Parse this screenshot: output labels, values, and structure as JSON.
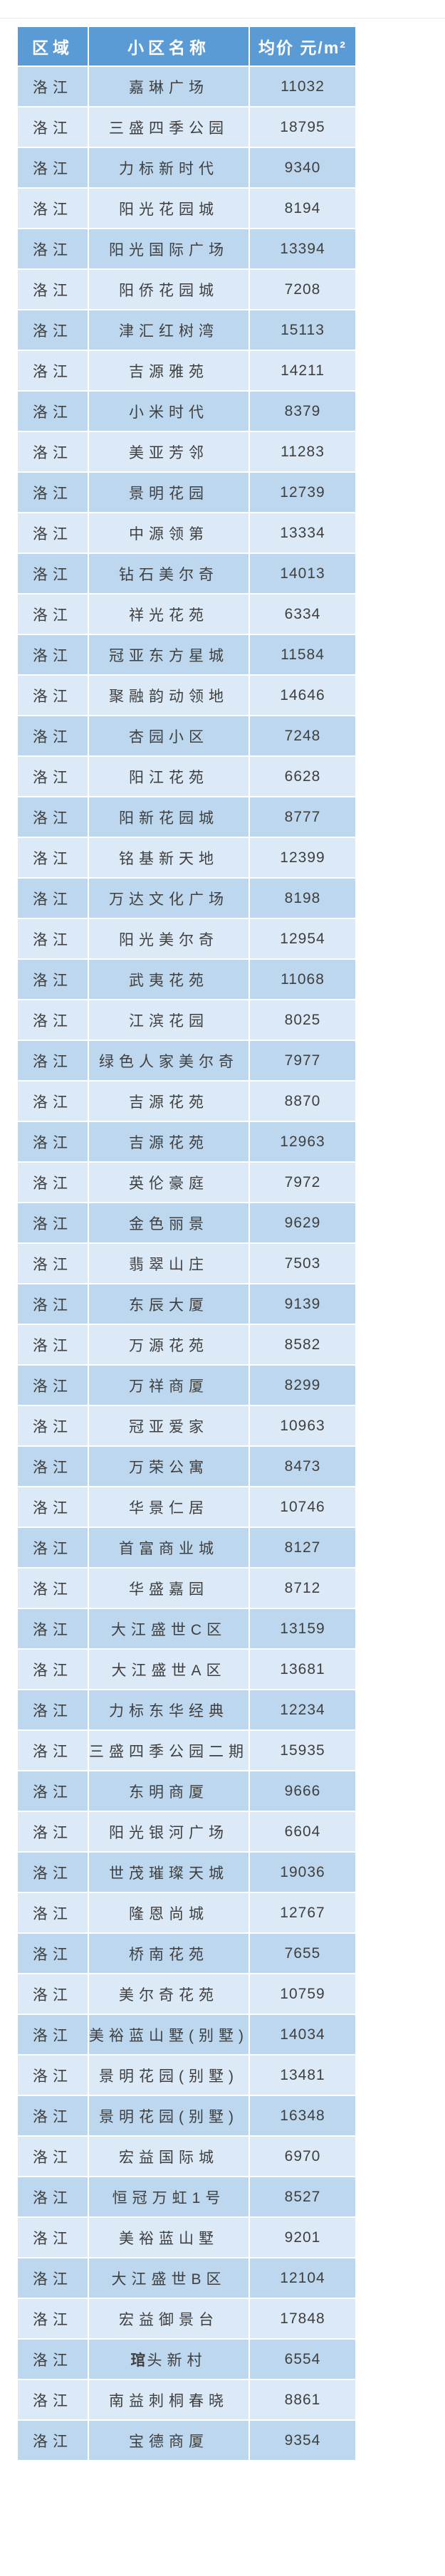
{
  "page": {
    "background": "#ffffff",
    "top_divider_color": "#e8e8e8"
  },
  "colors": {
    "header_bg": "#5b9bd5",
    "header_text": "#ffffff",
    "row_dark": "#bdd7ee",
    "row_light": "#dce9f6",
    "cell_text": "#3f3f3f",
    "grid_white": "#ffffff",
    "outer_border": "#a9c9e8"
  },
  "chart_data": {
    "type": "table",
    "title": "",
    "columns": [
      "区域",
      "小区名称",
      "均价 元/m²"
    ],
    "legend_position": "none",
    "grid": "white-separators",
    "print_prefix": {
      "row": 56,
      "chars": 1
    },
    "rows": [
      [
        "洛江",
        "嘉琳广场",
        11032
      ],
      [
        "洛江",
        "三盛四季公园",
        18795
      ],
      [
        "洛江",
        "力标新时代",
        9340
      ],
      [
        "洛江",
        "阳光花园城",
        8194
      ],
      [
        "洛江",
        "阳光国际广场",
        13394
      ],
      [
        "洛江",
        "阳侨花园城",
        7208
      ],
      [
        "洛江",
        "津汇红树湾",
        15113
      ],
      [
        "洛江",
        "吉源雅苑",
        14211
      ],
      [
        "洛江",
        "小米时代",
        8379
      ],
      [
        "洛江",
        "美亚芳邻",
        11283
      ],
      [
        "洛江",
        "景明花园",
        12739
      ],
      [
        "洛江",
        "中源领第",
        13334
      ],
      [
        "洛江",
        "钻石美尔奇",
        14013
      ],
      [
        "洛江",
        "祥光花苑",
        6334
      ],
      [
        "洛江",
        "冠亚东方星城",
        11584
      ],
      [
        "洛江",
        "聚融韵动领地",
        14646
      ],
      [
        "洛江",
        "杏园小区",
        7248
      ],
      [
        "洛江",
        "阳江花苑",
        6628
      ],
      [
        "洛江",
        "阳新花园城",
        8777
      ],
      [
        "洛江",
        "铭基新天地",
        12399
      ],
      [
        "洛江",
        "万达文化广场",
        8198
      ],
      [
        "洛江",
        "阳光美尔奇",
        12954
      ],
      [
        "洛江",
        "武夷花苑",
        11068
      ],
      [
        "洛江",
        "江滨花园",
        8025
      ],
      [
        "洛江",
        "绿色人家美尔奇",
        7977
      ],
      [
        "洛江",
        "吉源花苑",
        8870
      ],
      [
        "洛江",
        "吉源花苑",
        12963
      ],
      [
        "洛江",
        "英伦豪庭",
        7972
      ],
      [
        "洛江",
        "金色丽景",
        9629
      ],
      [
        "洛江",
        "翡翠山庄",
        7503
      ],
      [
        "洛江",
        "东辰大厦",
        9139
      ],
      [
        "洛江",
        "万源花苑",
        8582
      ],
      [
        "洛江",
        "万祥商厦",
        8299
      ],
      [
        "洛江",
        "冠亚爱家",
        10963
      ],
      [
        "洛江",
        "万荣公寓",
        8473
      ],
      [
        "洛江",
        "华景仁居",
        10746
      ],
      [
        "洛江",
        "首富商业城",
        8127
      ],
      [
        "洛江",
        "华盛嘉园",
        8712
      ],
      [
        "洛江",
        "大江盛世C区",
        13159
      ],
      [
        "洛江",
        "大江盛世A区",
        13681
      ],
      [
        "洛江",
        "力标东华经典",
        12234
      ],
      [
        "洛江",
        "三盛四季公园二期",
        15935
      ],
      [
        "洛江",
        "东明商厦",
        9666
      ],
      [
        "洛江",
        "阳光银河广场",
        6604
      ],
      [
        "洛江",
        "世茂璀璨天城",
        19036
      ],
      [
        "洛江",
        "隆恩尚城",
        12767
      ],
      [
        "洛江",
        "桥南花苑",
        7655
      ],
      [
        "洛江",
        "美尔奇花苑",
        10759
      ],
      [
        "洛江",
        "美裕蓝山墅(别墅)",
        14034
      ],
      [
        "洛江",
        "景明花园(别墅)",
        13481
      ],
      [
        "洛江",
        "景明花园(别墅)",
        16348
      ],
      [
        "洛江",
        "宏益国际城",
        6970
      ],
      [
        "洛江",
        "恒冠万虹1号",
        8527
      ],
      [
        "洛江",
        "美裕蓝山墅",
        9201
      ],
      [
        "洛江",
        "大江盛世B区",
        12104
      ],
      [
        "洛江",
        "宏益御景台",
        17848
      ],
      [
        "洛江",
        "琯头新村",
        6554
      ],
      [
        "洛江",
        "南益刺桐春晓",
        8861
      ],
      [
        "洛江",
        "宝德商厦",
        9354
      ]
    ]
  }
}
